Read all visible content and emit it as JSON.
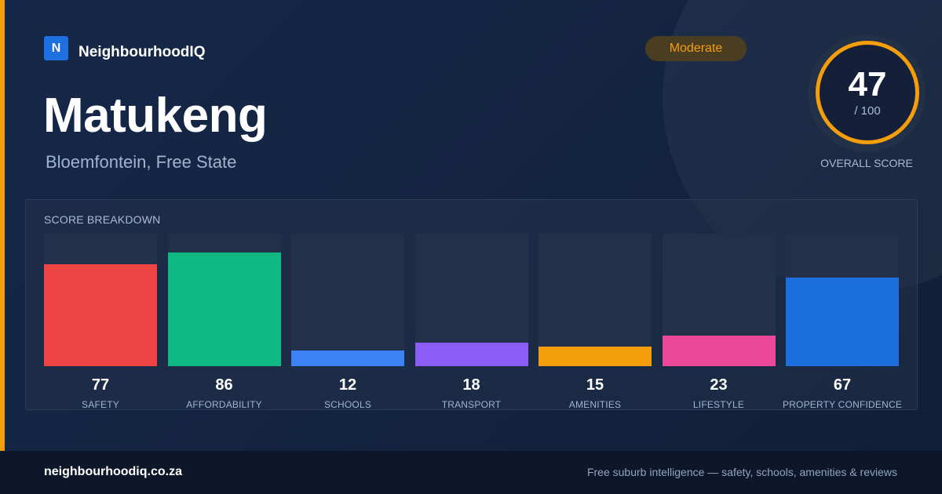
{
  "brand": {
    "logo_letter": "N",
    "name": "NeighbourhoodIQ",
    "accent_color": "#f59e0b",
    "logo_color": "#1e6fe0"
  },
  "suburb": {
    "name": "Matukeng",
    "location": "Bloemfontein, Free State"
  },
  "rating_badge": {
    "label": "Moderate",
    "color": "#f59e0b"
  },
  "overall_score": {
    "value": "47",
    "max": "/ 100",
    "label": "OVERALL SCORE",
    "ring_color": "#f59e0b"
  },
  "breakdown": {
    "title": "SCORE BREAKDOWN",
    "max_value": 100,
    "items": [
      {
        "label": "SAFETY",
        "value": 77,
        "color": "#ef4444"
      },
      {
        "label": "AFFORDABILITY",
        "value": 86,
        "color": "#10b981"
      },
      {
        "label": "SCHOOLS",
        "value": 12,
        "color": "#3b82f6"
      },
      {
        "label": "TRANSPORT",
        "value": 18,
        "color": "#8b5cf6"
      },
      {
        "label": "AMENITIES",
        "value": 15,
        "color": "#f59e0b"
      },
      {
        "label": "LIFESTYLE",
        "value": 23,
        "color": "#ec4899"
      },
      {
        "label": "PROPERTY CONFIDENCE",
        "value": 67,
        "color": "#1e6fde"
      }
    ]
  },
  "footer": {
    "url": "neighbourhoodiq.co.za",
    "tagline": "Free suburb intelligence — safety, schools, amenities & reviews"
  }
}
